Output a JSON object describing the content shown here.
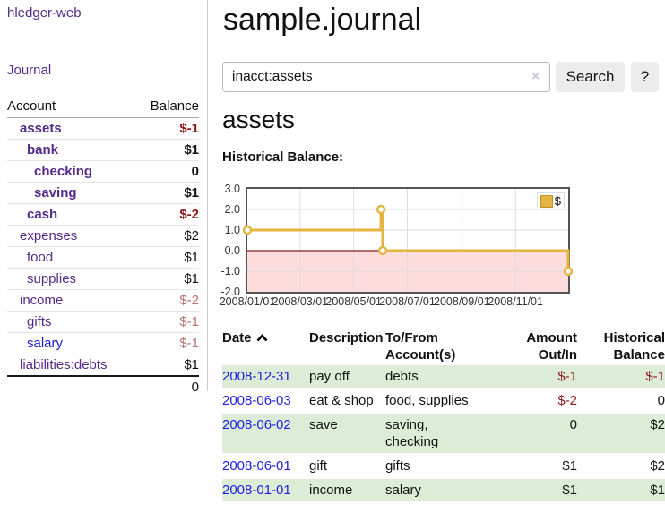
{
  "app": {
    "title": "hledger-web"
  },
  "sidebar": {
    "nav": {
      "journal": "Journal"
    },
    "accounts_table": {
      "headers": [
        "Account",
        "Balance"
      ],
      "rows": [
        {
          "name": "assets",
          "indent": 1,
          "bold": true,
          "link_color": "purple",
          "balance": "$-1",
          "balance_color": "negative"
        },
        {
          "name": "bank",
          "indent": 2,
          "bold": true,
          "link_color": "purple",
          "balance": "$1",
          "balance_color": "normal"
        },
        {
          "name": "checking",
          "indent": 3,
          "bold": true,
          "link_color": "purple",
          "balance": "0",
          "balance_color": "normal"
        },
        {
          "name": "saving",
          "indent": 3,
          "bold": true,
          "link_color": "purple",
          "balance": "$1",
          "balance_color": "normal"
        },
        {
          "name": "cash",
          "indent": 2,
          "bold": true,
          "link_color": "purple",
          "balance": "$-2",
          "balance_color": "negative"
        },
        {
          "name": "expenses",
          "indent": 1,
          "bold": false,
          "link_color": "purple",
          "balance": "$2",
          "balance_color": "normal"
        },
        {
          "name": "food",
          "indent": 2,
          "bold": false,
          "link_color": "purple",
          "balance": "$1",
          "balance_color": "normal"
        },
        {
          "name": "supplies",
          "indent": 2,
          "bold": false,
          "link_color": "purple",
          "balance": "$1",
          "balance_color": "normal"
        },
        {
          "name": "income",
          "indent": 1,
          "bold": false,
          "link_color": "purple",
          "balance": "$-2",
          "balance_color": "negative-muted"
        },
        {
          "name": "gifts",
          "indent": 2,
          "bold": false,
          "link_color": "purple",
          "balance": "$-1",
          "balance_color": "negative-muted"
        },
        {
          "name": "salary",
          "indent": 2,
          "bold": false,
          "link_color": "blue",
          "balance": "$-1",
          "balance_color": "negative-muted"
        },
        {
          "name": "liabilities:debts",
          "indent": 1,
          "bold": false,
          "link_color": "purple",
          "balance": "$1",
          "balance_color": "normal"
        }
      ],
      "total": "0"
    }
  },
  "main": {
    "title": "sample.journal",
    "search": {
      "value": "inacct:assets",
      "clear_glyph": "×",
      "clear_icon_name": "clear-search-icon",
      "button_label": "Search",
      "help_label": "?"
    },
    "section_heading": "assets",
    "chart_label": "Historical Balance:"
  },
  "chart_data": {
    "type": "line",
    "step": true,
    "title": "Historical Balance",
    "series": [
      {
        "name": "$",
        "points": [
          {
            "date": "2008-01-01",
            "value": 1
          },
          {
            "date": "2008-06-01",
            "value": 2
          },
          {
            "date": "2008-06-03",
            "value": 0
          },
          {
            "date": "2008-12-31",
            "value": -1
          }
        ]
      }
    ],
    "xrange": [
      "2008-01-01",
      "2008-12-31"
    ],
    "ylim": [
      -2,
      3
    ],
    "ytick_labels": [
      "3.0",
      "2.0",
      "1.0",
      "0.0",
      "-1.0",
      "-2.0"
    ],
    "xtick_labels": [
      "2008/01/01",
      "2008/03/01",
      "2008/05/01",
      "2008/07/01",
      "2008/09/01",
      "2008/11/01"
    ],
    "grid": true,
    "legend_position": "top-right",
    "line_color": "#e3b53e",
    "marker_fill": "#ffffff",
    "negative_area_color": "#fcdcdc",
    "zero_line_color": "#8b1a1a",
    "grid_color": "#dddddd",
    "border_color": "#555555"
  },
  "register_table": {
    "headers": [
      "Date",
      "Description",
      "To/From Account(s)",
      "Amount Out/In",
      "Historical Balance"
    ],
    "sort": {
      "column": "Date",
      "direction": "ascending",
      "icon": "chevron-up"
    },
    "rows": [
      {
        "date": "2008-12-31",
        "description": "pay off",
        "accounts": "debts",
        "amount": "$-1",
        "amount_negative": true,
        "balance": "$-1",
        "balance_negative": true
      },
      {
        "date": "2008-06-03",
        "description": "eat & shop",
        "accounts": "food, supplies",
        "amount": "$-2",
        "amount_negative": true,
        "balance": "0",
        "balance_negative": false
      },
      {
        "date": "2008-06-02",
        "description": "save",
        "accounts": "saving, checking",
        "amount": "0",
        "amount_negative": false,
        "balance": "$2",
        "balance_negative": false
      },
      {
        "date": "2008-06-01",
        "description": "gift",
        "accounts": "gifts",
        "amount": "$1",
        "amount_negative": false,
        "balance": "$2",
        "balance_negative": false
      },
      {
        "date": "2008-01-01",
        "description": "income",
        "accounts": "salary",
        "amount": "$1",
        "amount_negative": false,
        "balance": "$1",
        "balance_negative": false
      }
    ]
  },
  "colors": {
    "link_purple": "#562a8a",
    "link_blue": "#2121d6",
    "negative_strong": "#8e1919",
    "negative_muted": "#bb7070",
    "row_stripe_green": "#dcecd6",
    "sidebar_divider": "#cccccc"
  }
}
